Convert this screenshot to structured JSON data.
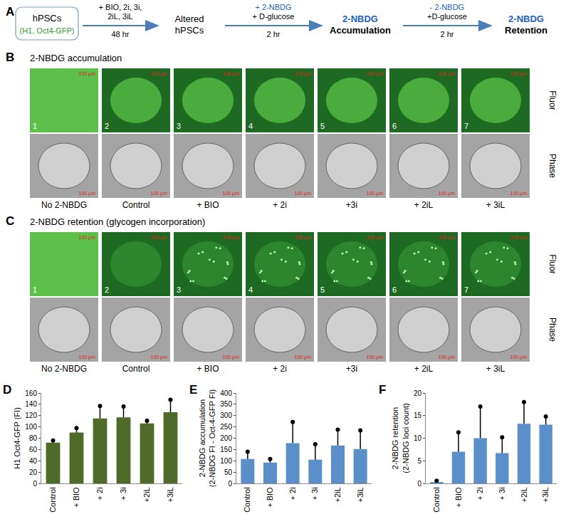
{
  "panels": {
    "A": {
      "letter": "A",
      "source": {
        "text": "hPSCs",
        "sub": "(H1, Oct4-GFP)",
        "sub_color": "#2e9e2e"
      },
      "steps": [
        {
          "above": [
            "+ BIO, 2i, 3i,",
            "2iL, 3iL"
          ],
          "below": "48 hr",
          "target": [
            "Altered",
            "hPSCs"
          ]
        },
        {
          "above": [
            "+ 2-NBDG",
            "+ D-glucose"
          ],
          "below": "2 hr",
          "target": [
            "2-NBDG",
            "Accumulation"
          ],
          "color": "#1f5fbf"
        },
        {
          "above": [
            "- 2-NBDG",
            "+D-glucose"
          ],
          "below": "2 hr",
          "target": [
            "2-NBDG",
            "Retention"
          ],
          "color": "#1f5fbf"
        }
      ]
    },
    "B": {
      "letter": "B",
      "title": "2-NBDG accumulation",
      "rows": [
        "Fluor",
        "Phase"
      ],
      "scale_bar": "100 µm",
      "conditions": [
        {
          "number": 1,
          "label": "No 2-NBDG"
        },
        {
          "number": 2,
          "label": "Control"
        },
        {
          "number": 3,
          "label": "+ BIO"
        },
        {
          "number": 4,
          "label": "+ 2i"
        },
        {
          "number": 5,
          "label": "+3i"
        },
        {
          "number": 6,
          "label": "+ 2iL"
        },
        {
          "number": 7,
          "label": "+ 3iL"
        }
      ]
    },
    "C": {
      "letter": "C",
      "title": "2-NBDG retention (glycogen incorporation)",
      "rows": [
        "Fluor",
        "Phase"
      ],
      "scale_bar": "100 µm",
      "conditions": [
        {
          "number": 1,
          "label": "No 2-NBDG"
        },
        {
          "number": 2,
          "label": "Control"
        },
        {
          "number": 3,
          "label": "+ BIO"
        },
        {
          "number": 4,
          "label": "+ 2i"
        },
        {
          "number": 5,
          "label": "+3i"
        },
        {
          "number": 6,
          "label": "+ 2iL"
        },
        {
          "number": 7,
          "label": "+ 3iL"
        }
      ]
    }
  },
  "chart_data": [
    {
      "type": "bar",
      "panel_label": "D",
      "ylabel": [
        "H1 Oct4-GFP (FI)"
      ],
      "categories": [
        "Control",
        "+ BIO",
        "+ 2i",
        "+ 3i",
        "+2iL",
        "+3iL"
      ],
      "values": [
        72,
        90,
        115,
        117,
        106,
        126
      ],
      "errors": [
        4,
        8,
        22,
        19,
        5,
        22
      ],
      "color": "#4f6b2a",
      "ylim": [
        0,
        160
      ],
      "yticks": [
        0,
        20,
        40,
        60,
        80,
        100,
        120,
        140,
        160
      ],
      "grid": false
    },
    {
      "type": "bar",
      "panel_label": "E",
      "ylabel": [
        "2-NBDG accumulation",
        "(2-NBDG FI - Oct-4-GFP FI)"
      ],
      "categories": [
        "Control",
        "+ BIO",
        "+ 2i",
        "+ 3i",
        "+2iL",
        "+3iL"
      ],
      "values": [
        108,
        92,
        178,
        105,
        168,
        152
      ],
      "errors": [
        32,
        16,
        94,
        68,
        70,
        83
      ],
      "color": "#5b8fc9",
      "ylim": [
        0,
        400
      ],
      "yticks": [
        0,
        50,
        100,
        150,
        200,
        250,
        300,
        350,
        400
      ],
      "grid": false
    },
    {
      "type": "bar",
      "panel_label": "F",
      "ylabel": [
        "2-NBDG retention",
        "(2-NBDG loci count)"
      ],
      "categories": [
        "Control",
        "+ BIO",
        "+ 2i",
        "+ 3i",
        "+2iL",
        "+3iL"
      ],
      "values": [
        0.3,
        7,
        10,
        6.7,
        13.2,
        13
      ],
      "errors": [
        0.3,
        4.3,
        7,
        3.5,
        4.8,
        1.8
      ],
      "color": "#5b8fc9",
      "ylim": [
        0,
        20
      ],
      "yticks": [
        0,
        5,
        10,
        15,
        20
      ],
      "grid": false
    }
  ]
}
